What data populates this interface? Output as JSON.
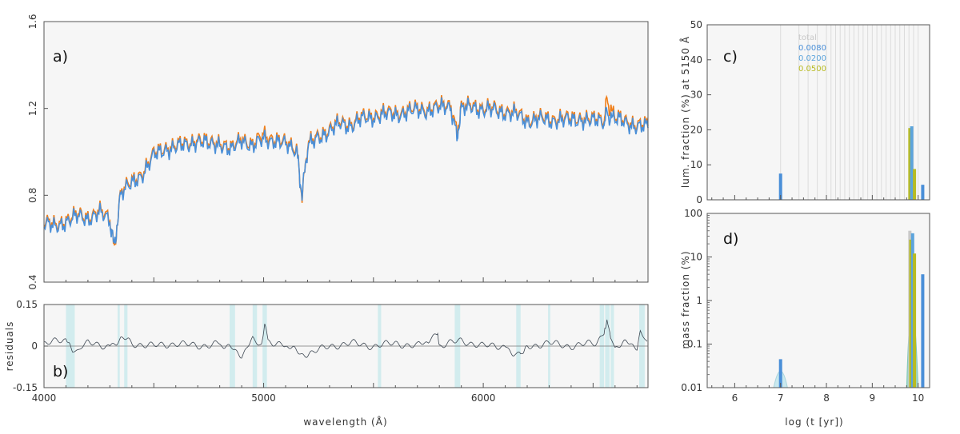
{
  "colors": {
    "observed": "#f07f1a",
    "model": "#4a8fd8",
    "residual": "#3d4752",
    "mask": "#d2ecee",
    "panel_bg": "#f6f6f6",
    "z_total": "#c9c9c9",
    "z_0080": "#4a8fd8",
    "z_0200": "#5ca4dc",
    "z_0500": "#b8bb22"
  },
  "chart_data": [
    {
      "id": "a",
      "type": "line",
      "panel_label": "a)",
      "xlim": [
        4000,
        6750
      ],
      "ylim": [
        0.4,
        1.6
      ],
      "yticks": [
        0.4,
        0.8,
        1.2,
        1.6
      ],
      "ytick_labels": [
        "0.4",
        "0.8",
        "1.2",
        "1.6"
      ],
      "series": [
        {
          "name": "observed",
          "x": [
            4000,
            4050,
            4100,
            4150,
            4200,
            4250,
            4300,
            4320,
            4350,
            4400,
            4450,
            4500,
            4550,
            4600,
            4650,
            4700,
            4750,
            4800,
            4850,
            4900,
            4950,
            5000,
            5050,
            5100,
            5150,
            5175,
            5200,
            5250,
            5300,
            5350,
            5400,
            5450,
            5500,
            5550,
            5600,
            5650,
            5700,
            5750,
            5800,
            5850,
            5880,
            5900,
            5950,
            6000,
            6050,
            6100,
            6150,
            6200,
            6250,
            6300,
            6350,
            6400,
            6450,
            6500,
            6550,
            6563,
            6600,
            6650,
            6700,
            6750
          ],
          "y": [
            0.68,
            0.66,
            0.69,
            0.71,
            0.7,
            0.73,
            0.69,
            0.55,
            0.82,
            0.86,
            0.91,
            0.99,
            1.02,
            1.03,
            1.04,
            1.06,
            1.04,
            1.05,
            1.01,
            1.07,
            1.03,
            1.08,
            1.06,
            1.04,
            1.02,
            0.79,
            1.03,
            1.08,
            1.1,
            1.14,
            1.13,
            1.16,
            1.17,
            1.18,
            1.18,
            1.19,
            1.2,
            1.2,
            1.21,
            1.22,
            1.09,
            1.2,
            1.22,
            1.2,
            1.2,
            1.19,
            1.18,
            1.15,
            1.16,
            1.15,
            1.16,
            1.15,
            1.16,
            1.15,
            1.15,
            1.23,
            1.16,
            1.14,
            1.13,
            1.12
          ]
        },
        {
          "name": "model",
          "x": [
            4000,
            4050,
            4100,
            4150,
            4200,
            4250,
            4300,
            4320,
            4350,
            4400,
            4450,
            4500,
            4550,
            4600,
            4650,
            4700,
            4750,
            4800,
            4850,
            4900,
            4950,
            5000,
            5050,
            5100,
            5150,
            5175,
            5200,
            5250,
            5300,
            5350,
            5400,
            5450,
            5500,
            5550,
            5600,
            5650,
            5700,
            5750,
            5800,
            5850,
            5880,
            5900,
            5950,
            6000,
            6050,
            6100,
            6150,
            6200,
            6250,
            6300,
            6350,
            6400,
            6450,
            6500,
            6550,
            6563,
            6600,
            6650,
            6700,
            6750
          ],
          "y": [
            0.67,
            0.65,
            0.68,
            0.7,
            0.69,
            0.72,
            0.68,
            0.56,
            0.81,
            0.85,
            0.9,
            0.98,
            1.01,
            1.02,
            1.03,
            1.05,
            1.03,
            1.04,
            1.0,
            1.06,
            1.02,
            1.06,
            1.05,
            1.03,
            1.01,
            0.8,
            1.02,
            1.07,
            1.09,
            1.13,
            1.12,
            1.15,
            1.16,
            1.17,
            1.17,
            1.18,
            1.19,
            1.19,
            1.2,
            1.21,
            1.07,
            1.19,
            1.21,
            1.19,
            1.19,
            1.18,
            1.17,
            1.14,
            1.15,
            1.14,
            1.15,
            1.14,
            1.15,
            1.14,
            1.14,
            1.17,
            1.15,
            1.13,
            1.12,
            1.11
          ]
        }
      ]
    },
    {
      "id": "b",
      "type": "line",
      "panel_label": "b)",
      "xlabel": "wavelength (Å)",
      "ylabel": "residuals",
      "xlim": [
        4000,
        6750
      ],
      "ylim": [
        -0.15,
        0.15
      ],
      "xticks": [
        4000,
        5000,
        6000
      ],
      "xtick_labels": [
        "4000",
        "5000",
        "6000"
      ],
      "yticks": [
        -0.15,
        0,
        0.15
      ],
      "ytick_labels": [
        "-0.15",
        "0",
        "0.15"
      ],
      "masked_regions": [
        [
          4100,
          4140
        ],
        [
          4335,
          4345
        ],
        [
          4365,
          4380
        ],
        [
          4845,
          4870
        ],
        [
          4950,
          4970
        ],
        [
          4995,
          5015
        ],
        [
          5520,
          5535
        ],
        [
          5870,
          5895
        ],
        [
          6150,
          6170
        ],
        [
          6295,
          6305
        ],
        [
          6530,
          6550
        ],
        [
          6555,
          6575
        ],
        [
          6580,
          6595
        ],
        [
          6710,
          6735
        ]
      ],
      "series": [
        {
          "name": "residual",
          "x": [
            4000,
            4100,
            4130,
            4200,
            4300,
            4350,
            4400,
            4500,
            4600,
            4700,
            4800,
            4850,
            4900,
            4950,
            4990,
            5005,
            5020,
            5100,
            5150,
            5200,
            5300,
            5400,
            5500,
            5600,
            5700,
            5750,
            5790,
            5800,
            5900,
            6000,
            6100,
            6150,
            6170,
            6200,
            6300,
            6400,
            6500,
            6550,
            6563,
            6580,
            6600,
            6650,
            6700,
            6715,
            6750
          ],
          "y": [
            0.01,
            0.02,
            -0.02,
            0.01,
            0.0,
            0.03,
            0.01,
            0.0,
            0.01,
            0.0,
            0.01,
            -0.01,
            -0.03,
            0.02,
            0.0,
            0.07,
            0.02,
            0.0,
            -0.02,
            -0.03,
            0.0,
            0.01,
            0.0,
            0.01,
            0.0,
            0.02,
            0.05,
            0.0,
            0.02,
            0.0,
            0.0,
            -0.03,
            -0.04,
            0.0,
            0.01,
            0.0,
            0.01,
            0.04,
            0.1,
            0.02,
            0.0,
            0.01,
            0.0,
            0.06,
            0.0
          ]
        }
      ]
    },
    {
      "id": "c",
      "type": "bar",
      "panel_label": "c)",
      "ylabel": "lum. fraction (%) at 5150 Å",
      "xlim": [
        5.4,
        10.25
      ],
      "ylim": [
        0,
        50
      ],
      "yticks": [
        0,
        10,
        20,
        30,
        40,
        50
      ],
      "ytick_labels": [
        "0",
        "10",
        "20",
        "30",
        "40",
        "50"
      ],
      "age_grid": [
        7.0,
        7.4,
        7.6,
        7.8,
        8.0,
        8.1,
        8.2,
        8.3,
        8.4,
        8.5,
        8.6,
        8.7,
        8.8,
        8.9,
        9.0,
        9.1,
        9.2,
        9.3,
        9.4,
        9.5,
        9.6,
        9.7,
        9.8,
        9.9,
        10.0
      ],
      "legend": [
        {
          "label": "total",
          "color_key": "z_total"
        },
        {
          "label": "0.0080",
          "color_key": "z_0080"
        },
        {
          "label": "0.0200",
          "color_key": "z_0200"
        },
        {
          "label": "0.0500",
          "color_key": "z_0500"
        }
      ],
      "bars": [
        {
          "x": 7.0,
          "value": 7.5,
          "series": "0.0080"
        },
        {
          "x": 9.82,
          "value": 20.5,
          "series": "0.0500"
        },
        {
          "x": 9.86,
          "value": 21.0,
          "series": "0.0200"
        },
        {
          "x": 9.92,
          "value": 8.8,
          "series": "0.0500"
        },
        {
          "x": 10.1,
          "value": 4.3,
          "series": "0.0080"
        }
      ]
    },
    {
      "id": "d",
      "type": "bar",
      "panel_label": "d)",
      "xlabel": "log (t [yr])",
      "ylabel": "mass fraction (%)",
      "xlim": [
        5.4,
        10.25
      ],
      "ylim": [
        0.01,
        100
      ],
      "yscale": "log",
      "xticks": [
        6,
        7,
        8,
        9,
        10
      ],
      "xtick_labels": [
        "6",
        "7",
        "8",
        "9",
        "10"
      ],
      "yticks": [
        0.01,
        0.1,
        1,
        10,
        100
      ],
      "ytick_labels": [
        "0.01",
        "0.1",
        "1",
        "10",
        "100"
      ],
      "bars": [
        {
          "x": 7.0,
          "value": 0.045,
          "series": "0.0080"
        },
        {
          "x": 9.82,
          "value": 40,
          "series": "total"
        },
        {
          "x": 9.84,
          "value": 25,
          "series": "0.0500"
        },
        {
          "x": 9.88,
          "value": 35,
          "series": "0.0200"
        },
        {
          "x": 9.92,
          "value": 12,
          "series": "0.0500"
        },
        {
          "x": 10.1,
          "value": 4,
          "series": "0.0080"
        }
      ]
    }
  ]
}
